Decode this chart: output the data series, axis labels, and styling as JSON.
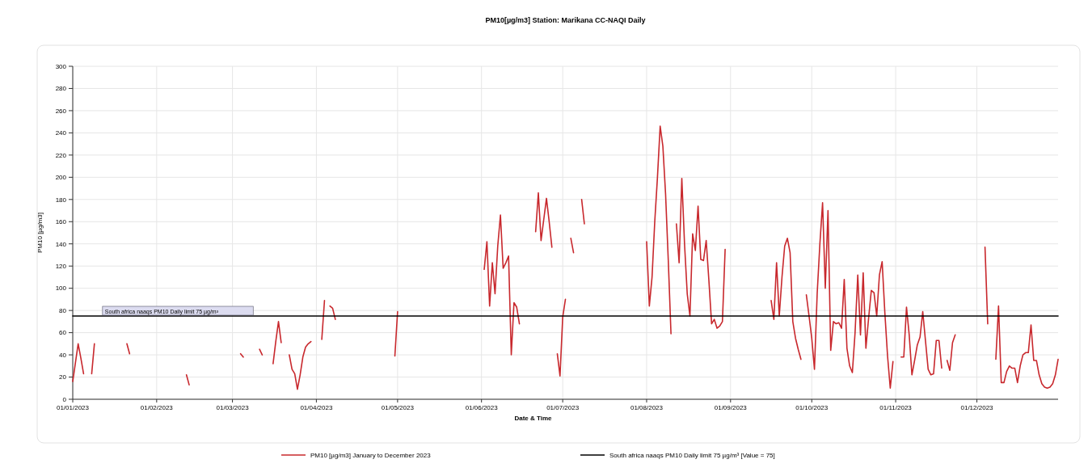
{
  "chart_data": {
    "type": "line",
    "title": "PM10[µg/m3] Station: Marikana CC-NAQI Daily",
    "xlabel": "Date & Time",
    "ylabel": "PM10 [µg/m3]",
    "xlim": [
      "2023-01-01",
      "2023-12-31"
    ],
    "xticks": [
      {
        "value": "2023-01-01",
        "label": "01/01/2023"
      },
      {
        "value": "2023-02-01",
        "label": "01/02/2023"
      },
      {
        "value": "2023-03-01",
        "label": "01/03/2023"
      },
      {
        "value": "2023-04-01",
        "label": "01/04/2023"
      },
      {
        "value": "2023-05-01",
        "label": "01/05/2023"
      },
      {
        "value": "2023-06-01",
        "label": "01/06/2023"
      },
      {
        "value": "2023-07-01",
        "label": "01/07/2023"
      },
      {
        "value": "2023-08-01",
        "label": "01/08/2023"
      },
      {
        "value": "2023-09-01",
        "label": "01/09/2023"
      },
      {
        "value": "2023-10-01",
        "label": "01/10/2023"
      },
      {
        "value": "2023-11-01",
        "label": "01/11/2023"
      },
      {
        "value": "2023-12-01",
        "label": "01/12/2023"
      }
    ],
    "ylim": [
      0,
      300
    ],
    "yticks": [
      0,
      20,
      40,
      60,
      80,
      100,
      120,
      140,
      160,
      180,
      200,
      220,
      240,
      260,
      280,
      300
    ],
    "grid": true,
    "legend": "bottom",
    "line_style": "solid",
    "annotations": [
      {
        "text": "South africa naaqs PM10 Daily limit 75 µg/m³",
        "x": "2023-01-12",
        "y": 75
      }
    ],
    "series": [
      {
        "name": "PM10 [µg/m3] January to December 2023",
        "color": "#c8282d",
        "x": [
          "2023-01-01",
          "2023-01-02",
          "2023-01-03",
          "2023-01-04",
          "2023-01-05",
          "2023-01-06",
          "2023-01-08",
          "2023-01-09",
          "2023-01-10",
          "2023-01-21",
          "2023-01-22",
          "2023-01-23",
          "2023-02-12",
          "2023-02-13",
          "2023-02-14",
          "2023-03-04",
          "2023-03-05",
          "2023-03-06",
          "2023-03-11",
          "2023-03-12",
          "2023-03-13",
          "2023-03-16",
          "2023-03-17",
          "2023-03-18",
          "2023-03-19",
          "2023-03-20",
          "2023-03-22",
          "2023-03-23",
          "2023-03-24",
          "2023-03-25",
          "2023-03-26",
          "2023-03-27",
          "2023-03-28",
          "2023-03-29",
          "2023-03-30",
          "2023-03-31",
          "2023-04-03",
          "2023-04-04",
          "2023-04-05",
          "2023-04-06",
          "2023-04-07",
          "2023-04-08",
          "2023-04-09",
          "2023-04-30",
          "2023-05-01",
          "2023-05-02",
          "2023-06-02",
          "2023-06-03",
          "2023-06-04",
          "2023-06-05",
          "2023-06-06",
          "2023-06-07",
          "2023-06-08",
          "2023-06-09",
          "2023-06-10",
          "2023-06-11",
          "2023-06-12",
          "2023-06-13",
          "2023-06-14",
          "2023-06-15",
          "2023-06-16",
          "2023-06-21",
          "2023-06-22",
          "2023-06-23",
          "2023-06-24",
          "2023-06-25",
          "2023-06-26",
          "2023-06-27",
          "2023-06-28",
          "2023-06-29",
          "2023-06-30",
          "2023-07-01",
          "2023-07-02",
          "2023-07-03",
          "2023-07-04",
          "2023-07-05",
          "2023-07-06",
          "2023-07-08",
          "2023-07-09",
          "2023-07-10",
          "2023-08-01",
          "2023-08-02",
          "2023-08-03",
          "2023-08-04",
          "2023-08-05",
          "2023-08-06",
          "2023-08-07",
          "2023-08-08",
          "2023-08-09",
          "2023-08-10",
          "2023-08-11",
          "2023-08-12",
          "2023-08-13",
          "2023-08-14",
          "2023-08-15",
          "2023-08-16",
          "2023-08-17",
          "2023-08-18",
          "2023-08-19",
          "2023-08-20",
          "2023-08-21",
          "2023-08-22",
          "2023-08-23",
          "2023-08-24",
          "2023-08-25",
          "2023-08-26",
          "2023-08-27",
          "2023-08-28",
          "2023-08-29",
          "2023-08-30",
          "2023-08-31",
          "2023-09-16",
          "2023-09-17",
          "2023-09-18",
          "2023-09-19",
          "2023-09-20",
          "2023-09-21",
          "2023-09-22",
          "2023-09-23",
          "2023-09-24",
          "2023-09-25",
          "2023-09-26",
          "2023-09-27",
          "2023-09-28",
          "2023-09-29",
          "2023-09-30",
          "2023-10-01",
          "2023-10-02",
          "2023-10-03",
          "2023-10-04",
          "2023-10-05",
          "2023-10-06",
          "2023-10-07",
          "2023-10-08",
          "2023-10-09",
          "2023-10-10",
          "2023-10-11",
          "2023-10-12",
          "2023-10-13",
          "2023-10-14",
          "2023-10-15",
          "2023-10-16",
          "2023-10-17",
          "2023-10-18",
          "2023-10-19",
          "2023-10-20",
          "2023-10-21",
          "2023-10-22",
          "2023-10-23",
          "2023-10-24",
          "2023-10-25",
          "2023-10-26",
          "2023-10-27",
          "2023-10-28",
          "2023-10-29",
          "2023-10-30",
          "2023-10-31",
          "2023-11-01",
          "2023-11-03",
          "2023-11-04",
          "2023-11-05",
          "2023-11-06",
          "2023-11-07",
          "2023-11-08",
          "2023-11-09",
          "2023-11-10",
          "2023-11-11",
          "2023-11-12",
          "2023-11-13",
          "2023-11-14",
          "2023-11-15",
          "2023-11-16",
          "2023-11-17",
          "2023-11-18",
          "2023-11-19",
          "2023-11-20",
          "2023-11-21",
          "2023-11-22",
          "2023-11-23",
          "2023-11-24",
          "2023-12-04",
          "2023-12-05",
          "2023-12-06",
          "2023-12-08",
          "2023-12-09",
          "2023-12-10",
          "2023-12-11",
          "2023-12-12",
          "2023-12-13",
          "2023-12-14",
          "2023-12-15",
          "2023-12-16",
          "2023-12-17",
          "2023-12-18",
          "2023-12-19",
          "2023-12-20",
          "2023-12-21",
          "2023-12-22",
          "2023-12-23",
          "2023-12-24",
          "2023-12-25",
          "2023-12-26",
          "2023-12-27",
          "2023-12-28",
          "2023-12-29",
          "2023-12-30",
          "2023-12-31"
        ],
        "values": [
          16,
          33,
          50,
          37,
          23,
          null,
          23,
          50,
          null,
          50,
          41,
          null,
          22,
          13,
          null,
          41,
          38,
          null,
          45,
          40,
          null,
          32,
          52,
          70,
          51,
          null,
          40,
          27,
          23,
          9,
          22,
          38,
          47,
          50,
          52,
          null,
          54,
          89,
          null,
          84,
          82,
          72,
          null,
          39,
          79,
          null,
          117,
          142,
          84,
          123,
          95,
          138,
          166,
          118,
          123,
          129,
          40,
          87,
          83,
          68,
          null,
          151,
          186,
          143,
          162,
          181,
          160,
          137,
          null,
          41,
          21,
          74,
          90,
          null,
          145,
          132,
          null,
          180,
          158,
          null,
          142,
          84,
          110,
          160,
          200,
          246,
          228,
          185,
          125,
          59,
          null,
          158,
          123,
          199,
          140,
          95,
          75,
          149,
          134,
          174,
          126,
          125,
          143,
          107,
          68,
          72,
          64,
          66,
          70,
          135,
          null,
          89,
          72,
          123,
          75,
          110,
          138,
          145,
          132,
          70,
          55,
          45,
          36,
          null,
          94,
          75,
          55,
          27,
          95,
          140,
          177,
          100,
          170,
          44,
          70,
          68,
          69,
          64,
          108,
          46,
          30,
          24,
          60,
          112,
          58,
          114,
          46,
          73,
          98,
          96,
          75,
          112,
          124,
          78,
          39,
          10,
          34,
          null,
          38,
          38,
          83,
          58,
          22,
          35,
          49,
          56,
          79,
          53,
          27,
          22,
          23,
          53,
          53,
          28,
          null,
          35,
          26,
          51,
          58,
          null,
          137,
          68,
          null,
          36,
          84,
          15,
          15,
          25,
          30,
          28,
          28,
          15,
          30,
          40,
          42,
          42,
          67,
          35,
          35,
          22,
          14,
          11,
          10,
          11,
          14,
          22,
          36
        ]
      },
      {
        "name": "South africa naaqs PM10 Daily limit 75 µg/m³ [Value = 75]",
        "color": "#000000",
        "x": [
          "2023-01-01",
          "2023-12-31"
        ],
        "values": [
          75,
          75
        ]
      }
    ]
  }
}
